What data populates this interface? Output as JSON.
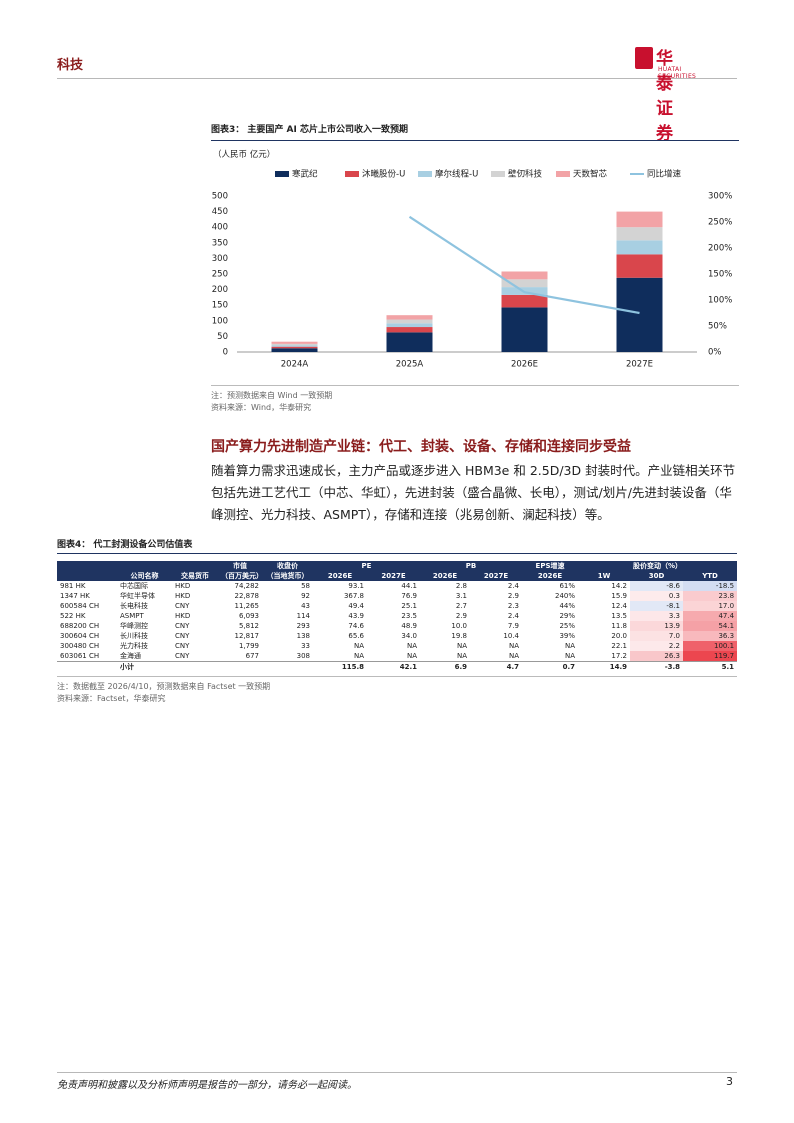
{
  "header": {
    "section": "科技",
    "logo": "华泰证券",
    "logo_en": "HUATAI SECURITIES"
  },
  "figure3": {
    "title": "图表3： 主要国产 AI 芯片上市公司收入一致预期",
    "unit": "（人民币 亿元）",
    "note": "注：预测数据来自 Wind 一致预期",
    "source": "资料来源：Wind，华泰研究"
  },
  "chart_data": {
    "type": "bar",
    "stacked": true,
    "categories": [
      "2024A",
      "2025A",
      "2026E",
      "2027E"
    ],
    "series": [
      {
        "name": "寒武纪",
        "color": "#0f2d5c",
        "values": [
          12,
          63,
          143,
          238
        ]
      },
      {
        "name": "沐曦股份-U",
        "color": "#d9464c",
        "values": [
          5,
          17,
          40,
          75
        ]
      },
      {
        "name": "摩尔线程-U",
        "color": "#a8cfe2",
        "values": [
          4,
          12,
          25,
          45
        ]
      },
      {
        "name": "壁仞科技",
        "color": "#d3d3d3",
        "values": [
          5,
          12,
          25,
          42
        ]
      },
      {
        "name": "天数智芯",
        "color": "#f2a3a6",
        "values": [
          7,
          14,
          25,
          50
        ]
      },
      {
        "name": "同比增速",
        "color": "#8ec3df",
        "type": "line",
        "axis": "y2",
        "values": [
          null,
          260,
          115,
          75
        ]
      }
    ],
    "ylim": [
      0,
      500
    ],
    "yticks": [
      0,
      50,
      100,
      150,
      200,
      250,
      300,
      350,
      400,
      450,
      500
    ],
    "y2lim": [
      0,
      300
    ],
    "y2ticks": [
      {
        "value": 0,
        "label": "0%"
      },
      {
        "value": 50,
        "label": "50%"
      },
      {
        "value": 100,
        "label": "100%"
      },
      {
        "value": 150,
        "label": "150%"
      },
      {
        "value": 200,
        "label": "200%"
      },
      {
        "value": 250,
        "label": "250%"
      },
      {
        "value": 300,
        "label": "300%"
      }
    ],
    "legend": "top",
    "grid": false
  },
  "section": {
    "heading": "国产算力先进制造产业链：代工、封装、设备、存储和连接同步受益",
    "body": "随着算力需求迅速成长，主力产品或逐步进入 HBM3e 和 2.5D/3D 封装时代。产业链相关环节包括先进工艺代工（中芯、华虹），先进封装（盛合晶微、长电），测试/划片/先进封装设备（华峰测控、光力科技、ASMPT），存储和连接（兆易创新、澜起科技）等。"
  },
  "figure4": {
    "title": "图表4： 代工封测设备公司估值表",
    "table": {
      "group_headers": [
        "市值",
        "收盘价",
        "PE",
        "PB",
        "EPS增速",
        "股价变动（%）"
      ],
      "headers": [
        "公司名称",
        "交易货币",
        "（百万美元）",
        "（当地货币）",
        "2026E",
        "2027E",
        "2026E",
        "2027E",
        "2026E",
        "1W",
        "30D",
        "YTD"
      ],
      "rows": [
        [
          "981 HK",
          "中芯国际",
          "HKD",
          "74,282",
          "58",
          "93.1",
          "44.1",
          "2.8",
          "2.4",
          "61%",
          "14.2",
          "-8.6",
          "-18.5"
        ],
        [
          "1347 HK",
          "华虹半导体",
          "HKD",
          "22,878",
          "92",
          "367.8",
          "76.9",
          "3.1",
          "2.9",
          "240%",
          "15.9",
          "0.3",
          "23.8"
        ],
        [
          "600584 CH",
          "长电科技",
          "CNY",
          "11,265",
          "43",
          "49.4",
          "25.1",
          "2.7",
          "2.3",
          "44%",
          "12.4",
          "-8.1",
          "17.0"
        ],
        [
          "522 HK",
          "ASMPT",
          "HKD",
          "6,093",
          "114",
          "43.9",
          "23.5",
          "2.9",
          "2.4",
          "29%",
          "13.5",
          "3.3",
          "47.4"
        ],
        [
          "688200 CH",
          "华峰测控",
          "CNY",
          "5,812",
          "293",
          "74.6",
          "48.9",
          "10.0",
          "7.9",
          "25%",
          "11.8",
          "13.9",
          "54.1"
        ],
        [
          "300604 CH",
          "长川科技",
          "CNY",
          "12,817",
          "138",
          "65.6",
          "34.0",
          "19.8",
          "10.4",
          "39%",
          "20.0",
          "7.0",
          "36.3"
        ],
        [
          "300480 CH",
          "光力科技",
          "CNY",
          "1,799",
          "33",
          "NA",
          "NA",
          "NA",
          "NA",
          "NA",
          "22.1",
          "2.2",
          "100.1"
        ],
        [
          "603061 CH",
          "金海通",
          "CNY",
          "677",
          "308",
          "NA",
          "NA",
          "NA",
          "NA",
          "NA",
          "17.2",
          "26.3",
          "119.7"
        ]
      ],
      "subtotal": {
        "label": "小计",
        "values": [
          "115.8",
          "42.1",
          "6.9",
          "4.7",
          "0.7",
          "14.9",
          "-3.8",
          "5.1"
        ]
      }
    },
    "note": "注：数据截至 2026/4/10，预测数据来自 Factset 一致预期",
    "source": "资料来源：Factset，华泰研究"
  },
  "footer": {
    "disclaimer": "免责声明和披露以及分析师声明是报告的一部分，请务必一起阅读。",
    "page": "3"
  }
}
